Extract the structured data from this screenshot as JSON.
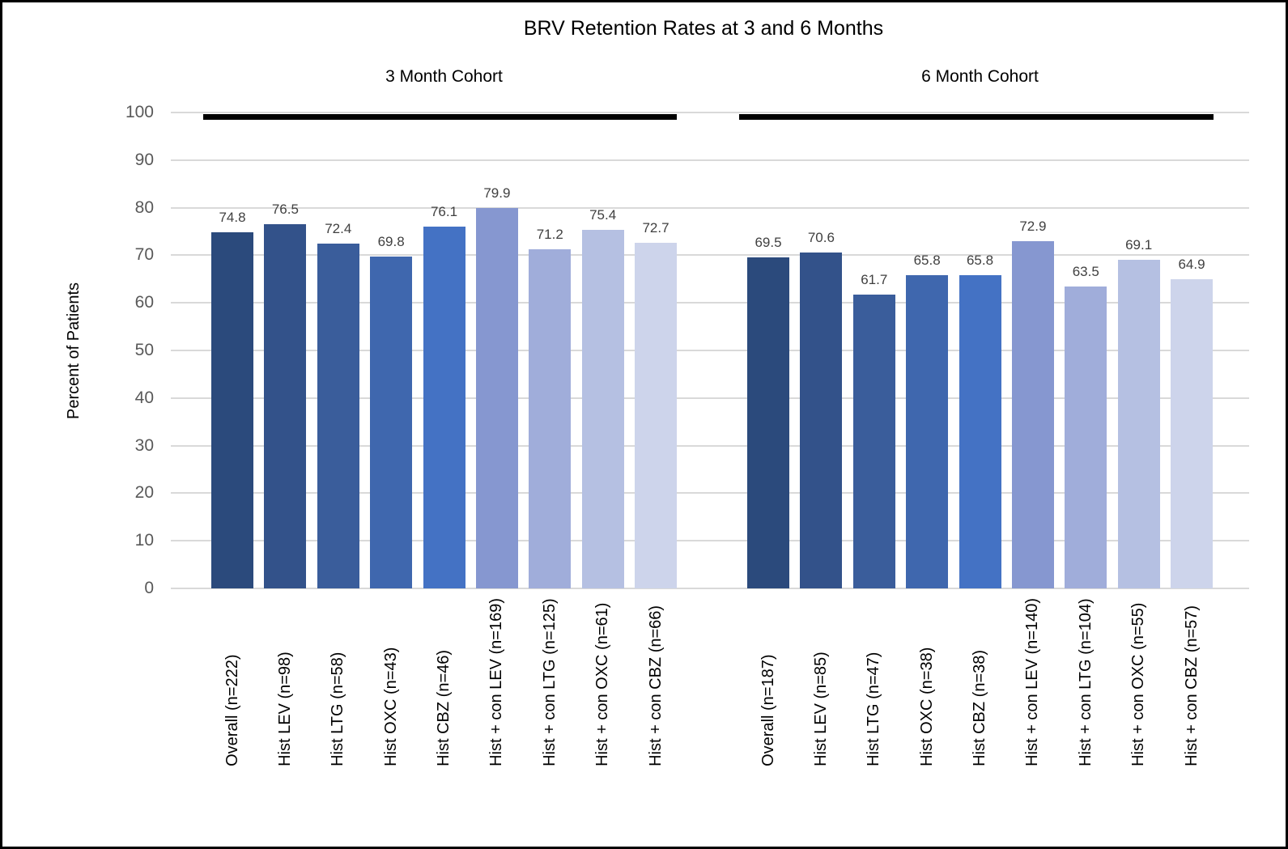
{
  "title": "BRV Retention Rates at 3 and 6 Months",
  "chart_data": {
    "type": "bar",
    "title": "BRV Retention Rates at 3 and 6 Months",
    "xlabel": "",
    "ylabel": "Percent of Patients",
    "ylim": [
      0,
      100
    ],
    "yticks": [
      0,
      10,
      20,
      30,
      40,
      50,
      60,
      70,
      80,
      90,
      100
    ],
    "grid": true,
    "legend": "none",
    "value_labels_shown": true,
    "groups": [
      {
        "label": "3 Month Cohort",
        "categories": [
          "Overall (n=222)",
          "Hist LEV (n=98)",
          "Hist LTG (n=58)",
          "Hist OXC (n=43)",
          "Hist CBZ (n=46)",
          "Hist + con LEV (n=169)",
          "Hist + con LTG (n=125)",
          "Hist + con OXC (n=61)",
          "Hist + con CBZ (n=66)"
        ],
        "values": [
          74.8,
          76.5,
          72.4,
          69.8,
          76.1,
          79.9,
          71.2,
          75.4,
          72.7
        ]
      },
      {
        "label": "6 Month Cohort",
        "categories": [
          "Overall (n=187)",
          "Hist LEV (n=85)",
          "Hist LTG (n=47)",
          "Hist OXC (n=38)",
          "Hist CBZ (n=38)",
          "Hist + con LEV (n=140)",
          "Hist + con LTG (n=104)",
          "Hist + con OXC (n=55)",
          "Hist + con CBZ (n=57)"
        ],
        "values": [
          69.5,
          70.6,
          61.7,
          65.8,
          65.8,
          72.9,
          63.5,
          69.1,
          64.9
        ]
      }
    ],
    "bar_colors": [
      "#2B4A7C",
      "#33528A",
      "#3A5D9B",
      "#3F67AE",
      "#4472C4",
      "#8697D0",
      "#A0ADDA",
      "#B5C0E2",
      "#CDD4EB"
    ],
    "colors": {
      "gridline": "#D9D9D9",
      "tick_label": "#595959",
      "value_label": "#404040",
      "text": "#000000",
      "group_span_line": "#000000",
      "background": "#FFFFFF",
      "border": "#000000"
    }
  }
}
